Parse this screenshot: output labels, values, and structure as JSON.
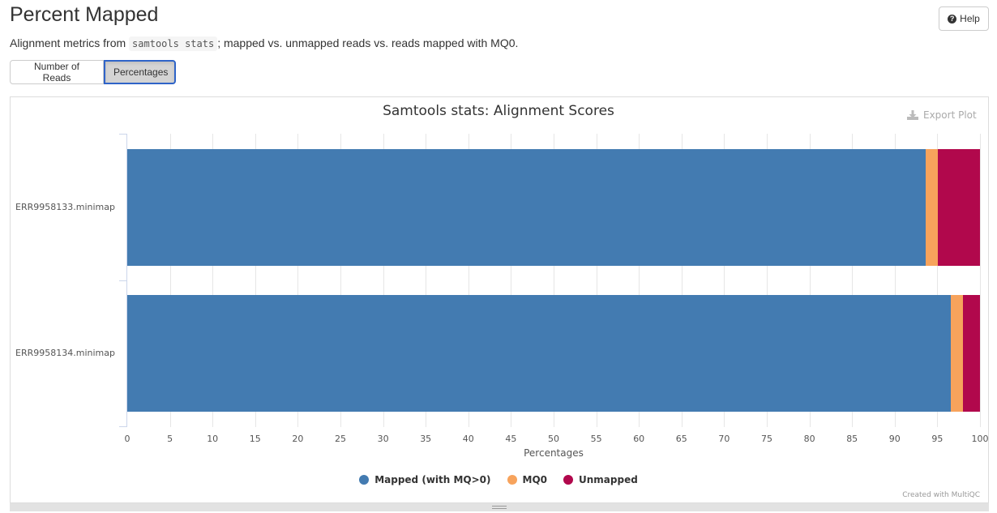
{
  "header": {
    "title": "Percent Mapped",
    "help_label": "Help",
    "description_prefix": "Alignment metrics from ",
    "description_code": "samtools stats",
    "description_suffix": "; mapped vs. unmapped reads vs. reads mapped with MQ0."
  },
  "toggle": {
    "options": [
      "Number of Reads",
      "Percentages"
    ],
    "selected": "Percentages"
  },
  "export_label": "Export Plot",
  "credit": "Created with MultiQC",
  "colors": {
    "mapped": "#437bb1",
    "mq0": "#f7a35c",
    "unmapped": "#b1084c"
  },
  "chart_data": {
    "type": "bar",
    "orientation": "horizontal",
    "stacked": true,
    "title": "Samtools stats: Alignment Scores",
    "xlabel": "Percentages",
    "ylabel": "",
    "xlim": [
      0,
      100
    ],
    "x_ticks": [
      0,
      5,
      10,
      15,
      20,
      25,
      30,
      35,
      40,
      45,
      50,
      55,
      60,
      65,
      70,
      75,
      80,
      85,
      90,
      95,
      100
    ],
    "grid": true,
    "legend_position": "bottom",
    "categories": [
      "ERR9958133.minimap",
      "ERR9958134.minimap"
    ],
    "series": [
      {
        "name": "Mapped (with MQ>0)",
        "color": "#437bb1",
        "values": [
          93.6,
          96.6
        ]
      },
      {
        "name": "MQ0",
        "color": "#f7a35c",
        "values": [
          1.5,
          1.4
        ]
      },
      {
        "name": "Unmapped",
        "color": "#b1084c",
        "values": [
          4.9,
          2.0
        ]
      }
    ]
  }
}
